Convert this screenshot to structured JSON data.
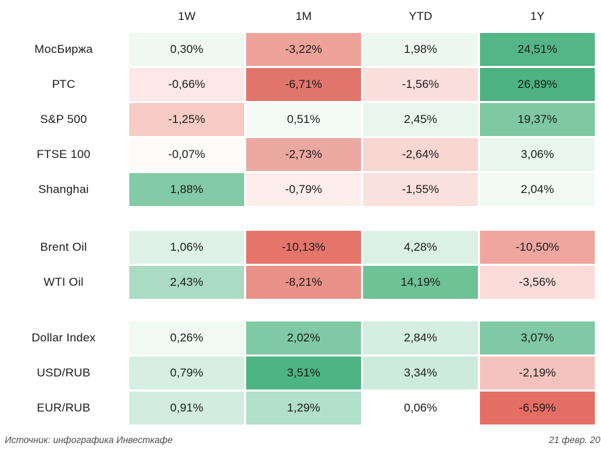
{
  "header": {
    "columns": [
      "1W",
      "1M",
      "YTD",
      "1Y"
    ]
  },
  "footer": {
    "source": "Источник: инфографика Инвесткафе",
    "date": "21 февр. 20"
  },
  "colors": {
    "strong_green": "#4db483",
    "strong_red": "#e2756b",
    "neutral": "#ffffff",
    "text": "#1c1c1c",
    "footer_text": "#4c4c4c"
  },
  "chart_data": {
    "type": "heatmap",
    "columns": [
      "1W",
      "1M",
      "YTD",
      "1Y"
    ],
    "value_format": "percent, comma decimal separator",
    "legend_position": "none",
    "groups": [
      {
        "name": "equity-indices",
        "rows": [
          {
            "label": "МосБиржа",
            "values": [
              0.3,
              -3.22,
              1.98,
              24.51
            ],
            "cells": [
              {
                "text": "0,30%",
                "bg": "#eff8f3"
              },
              {
                "text": "-3,22%",
                "bg": "#eda29a"
              },
              {
                "text": "1,98%",
                "bg": "#eef8f2"
              },
              {
                "text": "24,51%",
                "bg": "#54b586"
              }
            ]
          },
          {
            "label": "РТС",
            "values": [
              -0.66,
              -6.71,
              -1.56,
              26.89
            ],
            "cells": [
              {
                "text": "-0,66%",
                "bg": "#fce9e7"
              },
              {
                "text": "-6,71%",
                "bg": "#e2756b"
              },
              {
                "text": "-1,56%",
                "bg": "#fbdfdc"
              },
              {
                "text": "26,89%",
                "bg": "#4db282"
              }
            ]
          },
          {
            "label": "S&P 500",
            "values": [
              -1.25,
              0.51,
              2.45,
              19.37
            ],
            "cells": [
              {
                "text": "-1,25%",
                "bg": "#f6cbc6"
              },
              {
                "text": "0,51%",
                "bg": "#f4fbf7"
              },
              {
                "text": "2,45%",
                "bg": "#e8f6ee"
              },
              {
                "text": "19,37%",
                "bg": "#7ec8a2"
              }
            ]
          },
          {
            "label": "FTSE 100",
            "values": [
              -0.07,
              -2.73,
              -2.64,
              3.06
            ],
            "cells": [
              {
                "text": "-0,07%",
                "bg": "#fefbfb"
              },
              {
                "text": "-2,73%",
                "bg": "#eba8a1"
              },
              {
                "text": "-2,64%",
                "bg": "#f8d6d2"
              },
              {
                "text": "3,06%",
                "bg": "#e9f6ef"
              }
            ]
          },
          {
            "label": "Shanghai",
            "values": [
              1.88,
              -0.79,
              -1.55,
              2.04
            ],
            "cells": [
              {
                "text": "1,88%",
                "bg": "#82cba6"
              },
              {
                "text": "-0,79%",
                "bg": "#fdeeec"
              },
              {
                "text": "-1,55%",
                "bg": "#fbe1de"
              },
              {
                "text": "2,04%",
                "bg": "#f0f9f4"
              }
            ]
          }
        ]
      },
      {
        "name": "oil",
        "rows": [
          {
            "label": "Brent Oil",
            "values": [
              1.06,
              -10.13,
              4.28,
              -10.5
            ],
            "cells": [
              {
                "text": "1,06%",
                "bg": "#dff2e8"
              },
              {
                "text": "-10,13%",
                "bg": "#e5756b"
              },
              {
                "text": "4,28%",
                "bg": "#dcf1e6"
              },
              {
                "text": "-10,50%",
                "bg": "#eea69f"
              }
            ]
          },
          {
            "label": "WTI Oil",
            "values": [
              2.43,
              -8.21,
              14.19,
              -3.56
            ],
            "cells": [
              {
                "text": "2,43%",
                "bg": "#abdbc3"
              },
              {
                "text": "-8,21%",
                "bg": "#ea9188"
              },
              {
                "text": "14,19%",
                "bg": "#6dc296"
              },
              {
                "text": "-3,56%",
                "bg": "#fbdcd9"
              }
            ]
          }
        ]
      },
      {
        "name": "currencies",
        "rows": [
          {
            "label": "Dollar Index",
            "values": [
              0.26,
              2.02,
              2.84,
              3.07
            ],
            "cells": [
              {
                "text": "0,26%",
                "bg": "#f0f9f4"
              },
              {
                "text": "2,02%",
                "bg": "#7fc9a4"
              },
              {
                "text": "2,84%",
                "bg": "#d4eee1"
              },
              {
                "text": "3,07%",
                "bg": "#7fc9a4"
              }
            ]
          },
          {
            "label": "USD/RUB",
            "values": [
              0.79,
              3.51,
              3.34,
              -2.19
            ],
            "cells": [
              {
                "text": "0,79%",
                "bg": "#d7efe3"
              },
              {
                "text": "3,51%",
                "bg": "#4db483"
              },
              {
                "text": "3,34%",
                "bg": "#cdebdc"
              },
              {
                "text": "-2,19%",
                "bg": "#f5c3be"
              }
            ]
          },
          {
            "label": "EUR/RUB",
            "values": [
              0.91,
              1.29,
              0.06,
              -6.59
            ],
            "cells": [
              {
                "text": "0,91%",
                "bg": "#d2eddf"
              },
              {
                "text": "1,29%",
                "bg": "#b2dfc9"
              },
              {
                "text": "0,06%",
                "bg": "#fefefe"
              },
              {
                "text": "-6,59%",
                "bg": "#e56e64"
              }
            ]
          }
        ]
      }
    ]
  }
}
